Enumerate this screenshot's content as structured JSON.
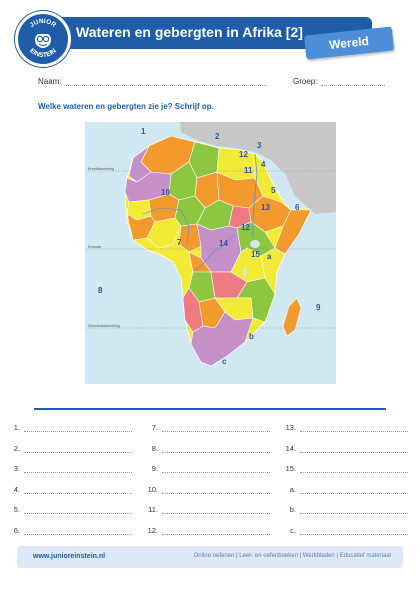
{
  "header": {
    "logo_text_top": "JUNIOR",
    "logo_text_bottom": "EINSTEIN",
    "title": "Wateren en gebergten in Afrika [2]",
    "category": "Wereld"
  },
  "form": {
    "name_label": "Naam:",
    "group_label": "Groep:"
  },
  "instruction": "Welke wateren en gebergten zie je? Schrijf op.",
  "map": {
    "latitude_lines": [
      "Kreeftskeerkring",
      "Evenaar",
      "Steenbokskeerkring"
    ],
    "markers": [
      "1",
      "2",
      "3",
      "4",
      "5",
      "6",
      "7",
      "8",
      "9",
      "10",
      "11",
      "12",
      "12",
      "13",
      "14",
      "15",
      "a",
      "b",
      "c"
    ],
    "colors": {
      "sea": "#cfe8f2",
      "outside_land": "#c7c7c7",
      "orange": "#f39a2e",
      "green": "#8dc63f",
      "yellow": "#f2ea35",
      "purple": "#c58fc8",
      "pink": "#ee7a82",
      "label": "#2b5aa0"
    }
  },
  "answers": {
    "col1": [
      "1.",
      "2.",
      "3.",
      "4.",
      "5.",
      "6."
    ],
    "col2": [
      "7.",
      "8.",
      "9.",
      "10.",
      "11.",
      "12."
    ],
    "col3": [
      "13.",
      "14.",
      "15.",
      "a.",
      "b.",
      "c."
    ]
  },
  "footer": {
    "url": "www.junioreinstein.nl",
    "links": "Online oefenen  |  Leer- en oefenboeken  |  Werkbladen  |  Educatief materiaal"
  }
}
